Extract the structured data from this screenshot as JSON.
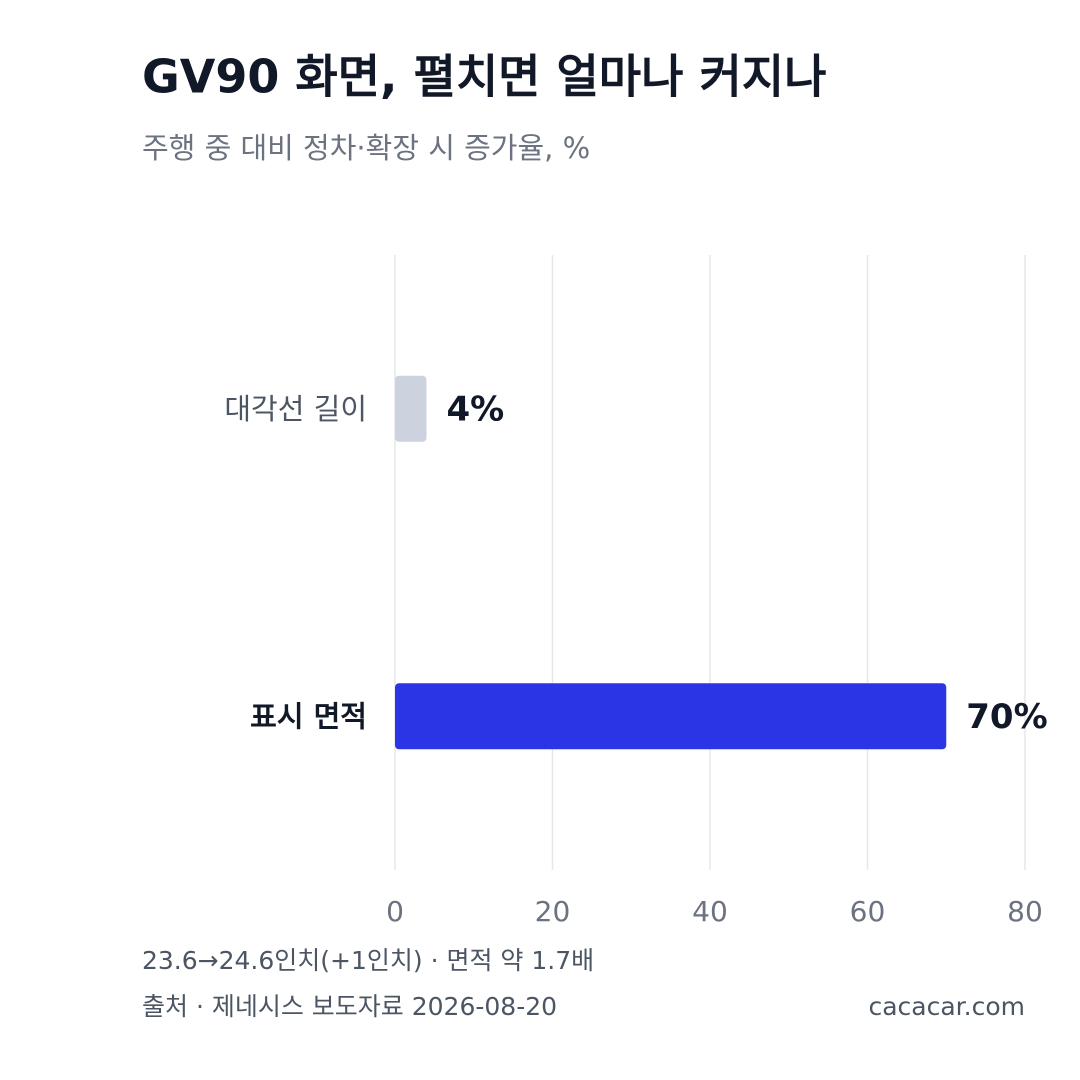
{
  "chart_data": {
    "type": "bar",
    "orientation": "horizontal",
    "title": "GV90 화면, 펼치면 얼마나 커지나",
    "subtitle": "주행 중 대비 정차·확장 시 증가율, %",
    "categories": [
      "대각선 길이",
      "표시 면적"
    ],
    "values": [
      4,
      70
    ],
    "value_labels": [
      "4%",
      "70%"
    ],
    "colors": [
      "#cdd3de",
      "#2b35e6"
    ],
    "xlim": [
      0,
      80
    ],
    "xticks": [
      0,
      20,
      40,
      60,
      80
    ],
    "grid": true,
    "note": "23.6→24.6인치(+1인치) · 면적 약 1.7배",
    "source": "출처 · 제네시스 보도자료 2026-08-20",
    "site": "cacacar.com"
  }
}
